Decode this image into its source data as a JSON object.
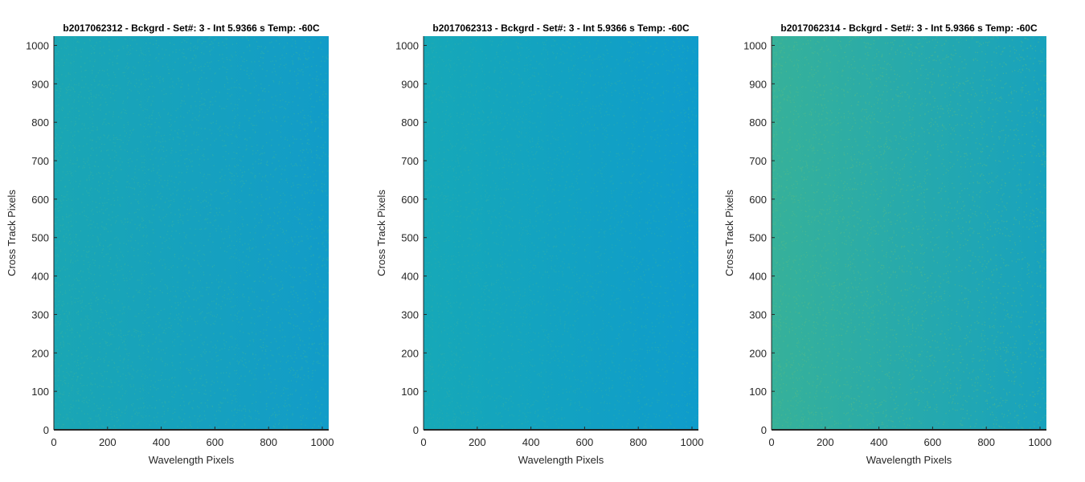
{
  "chart_data": [
    {
      "type": "heatmap",
      "title": "b2017062312 - Bckgrd - Set#: 3 - Int 5.9366 s Temp: -60C",
      "xlabel": "Wavelength Pixels",
      "ylabel": "Cross Track Pixels",
      "xlim": [
        0,
        1024
      ],
      "ylim": [
        0,
        1024
      ],
      "xticks": [
        0,
        200,
        400,
        600,
        800,
        1000
      ],
      "yticks": [
        0,
        100,
        200,
        300,
        400,
        500,
        600,
        700,
        800,
        900,
        1000
      ],
      "colormap": "parula",
      "gradient": {
        "left_color": "#1aa6b4",
        "right_color": "#129cc8",
        "noise_color": "#3cb3a0"
      },
      "grid": false
    },
    {
      "type": "heatmap",
      "title": "b2017062313 - Bckgrd - Set#: 3 - Int 5.9366 s Temp: -60C",
      "xlabel": "Wavelength Pixels",
      "ylabel": "Cross Track Pixels",
      "xlim": [
        0,
        1024
      ],
      "ylim": [
        0,
        1024
      ],
      "xticks": [
        0,
        200,
        400,
        600,
        800,
        1000
      ],
      "yticks": [
        0,
        100,
        200,
        300,
        400,
        500,
        600,
        700,
        800,
        900,
        1000
      ],
      "colormap": "parula",
      "gradient": {
        "left_color": "#16a8b8",
        "right_color": "#0f9ccb",
        "noise_color": "#34b0a8"
      },
      "grid": false
    },
    {
      "type": "heatmap",
      "title": "b2017062314 - Bckgrd - Set#: 3 - Int 5.9366 s Temp: -60C",
      "xlabel": "Wavelength Pixels",
      "ylabel": "Cross Track Pixels",
      "xlim": [
        0,
        1024
      ],
      "ylim": [
        0,
        1024
      ],
      "xticks": [
        0,
        200,
        400,
        600,
        800,
        1000
      ],
      "yticks": [
        0,
        100,
        200,
        300,
        400,
        500,
        600,
        700,
        800,
        900,
        1000
      ],
      "colormap": "parula",
      "gradient": {
        "left_color": "#36b19a",
        "right_color": "#18a2bd",
        "noise_color": "#5dbd82"
      },
      "grid": false
    }
  ]
}
